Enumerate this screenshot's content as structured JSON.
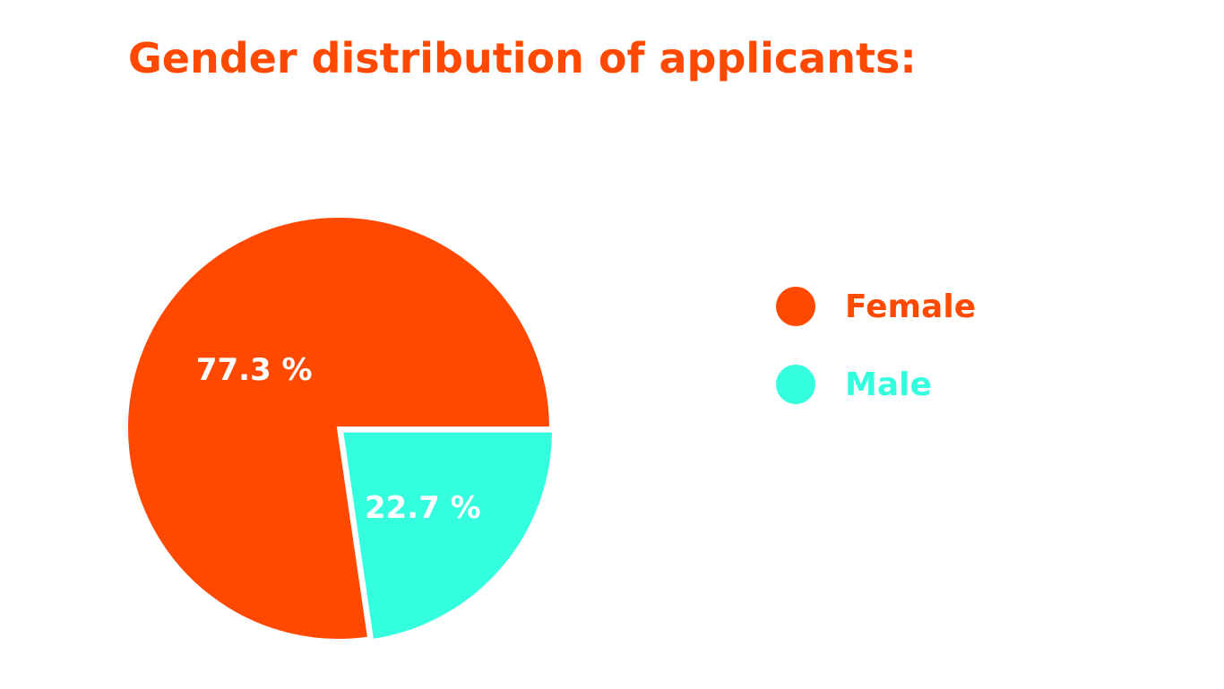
{
  "chart_data": {
    "type": "pie",
    "title": "Gender distribution of applicants:",
    "categories": [
      "Female",
      "Male"
    ],
    "values": [
      77.3,
      22.7
    ],
    "labels": [
      "77.3 %",
      "22.7 %"
    ],
    "colors": [
      "#FF4800",
      "#33FFDF"
    ],
    "legend_placement": "right"
  },
  "legend": {
    "items": [
      {
        "label": "Female",
        "color": "#FF4800"
      },
      {
        "label": "Male",
        "color": "#33FFDF"
      }
    ]
  }
}
